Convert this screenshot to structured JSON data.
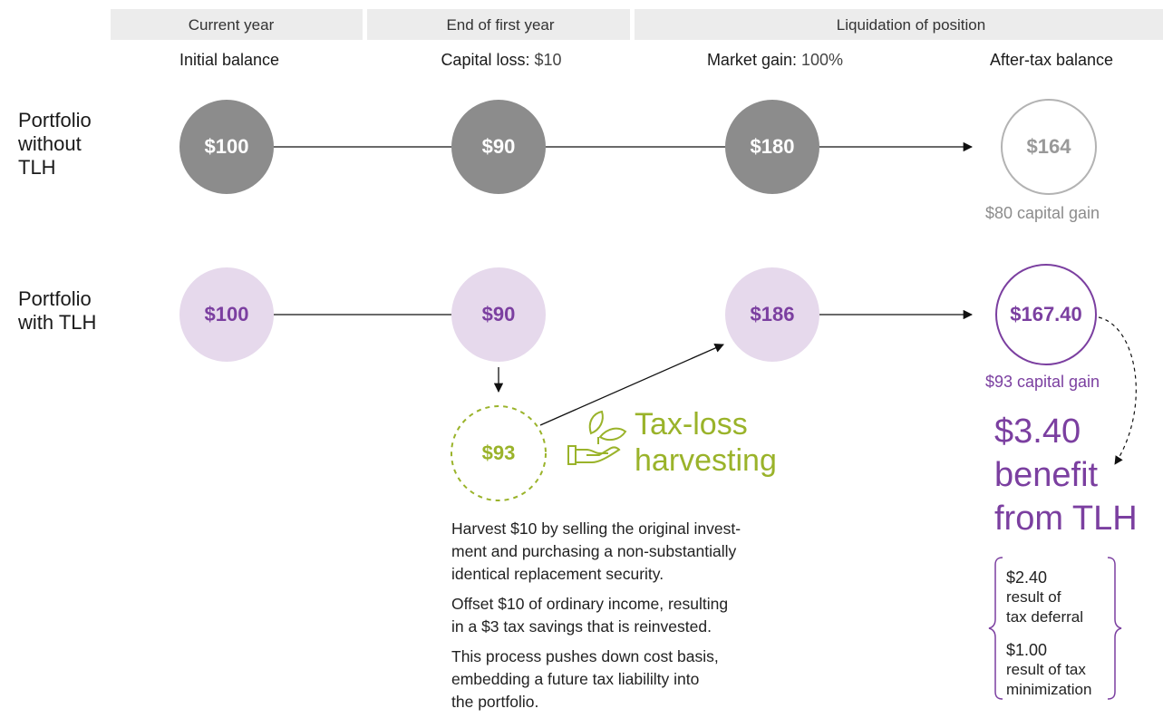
{
  "header": {
    "periods": [
      "Current year",
      "End of first year",
      "Liquidation of position"
    ]
  },
  "columns": [
    {
      "label": "Initial balance"
    },
    {
      "label": "Capital loss:",
      "value": "$10"
    },
    {
      "label": "Market gain:",
      "value": "100%"
    },
    {
      "label": "After-tax balance"
    }
  ],
  "rows": [
    {
      "label": [
        "Portfolio",
        "without",
        "TLH"
      ],
      "balances": [
        "$100",
        "$90",
        "$180",
        "$164"
      ],
      "note": "$80 capital gain"
    },
    {
      "label": [
        "Portfolio",
        "with TLH"
      ],
      "balances": [
        "$100",
        "$90",
        "$186",
        "$167.40"
      ],
      "note": "$93 capital gain"
    }
  ],
  "harvest": {
    "value": "$93",
    "title": [
      "Tax-loss",
      "harvesting"
    ],
    "paragraphs": [
      [
        "Harvest $10 by selling the original invest-",
        "ment and purchasing a non-substantially",
        "identical replacement security."
      ],
      [
        "Offset $10 of ordinary income, resulting",
        "in a $3 tax savings that is reinvested."
      ],
      [
        "This process pushes down cost basis,",
        "embedding a future tax liabililty into",
        "the portfolio."
      ]
    ]
  },
  "benefit": {
    "title": [
      "$3.40",
      "benefit",
      "from TLH"
    ],
    "components": [
      {
        "value": "$2.40",
        "lines": [
          "result of",
          "tax deferral"
        ]
      },
      {
        "value": "$1.00",
        "lines": [
          "result of tax",
          "minimization"
        ]
      }
    ]
  }
}
